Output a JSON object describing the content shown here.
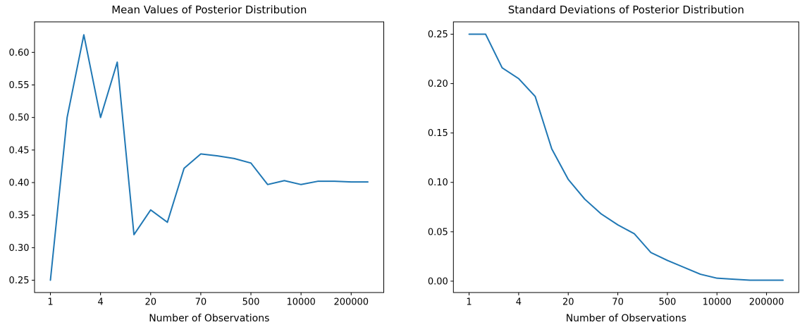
{
  "figure": {
    "background": "#ffffff",
    "text_color": "#000000",
    "spine_color": "#000000"
  },
  "chart_data": [
    {
      "type": "line",
      "title": "Mean Values of Posterior Distribution",
      "xlabel": "Number of Observations",
      "ylabel": "",
      "line_color": "#1f77b4",
      "grid": false,
      "legend": null,
      "x_tick_labels": [
        "1",
        "4",
        "20",
        "70",
        "500",
        "10000",
        "200000"
      ],
      "x_tick_indices": [
        0,
        3,
        6,
        9,
        12,
        15,
        18
      ],
      "x_index": [
        0,
        1,
        2,
        3,
        4,
        5,
        6,
        7,
        8,
        9,
        10,
        11,
        12,
        13,
        14,
        15,
        16,
        17,
        18,
        19
      ],
      "values": [
        0.25,
        0.5,
        0.627,
        0.5,
        0.585,
        0.32,
        0.358,
        0.339,
        0.422,
        0.444,
        0.441,
        0.437,
        0.43,
        0.397,
        0.403,
        0.397,
        0.402,
        0.402,
        0.401,
        0.401
      ],
      "y_tick_values": [
        0.25,
        0.3,
        0.35,
        0.4,
        0.45,
        0.5,
        0.55,
        0.6
      ],
      "y_tick_labels": [
        "0.25",
        "0.30",
        "0.35",
        "0.40",
        "0.45",
        "0.50",
        "0.55",
        "0.60"
      ],
      "ylim": [
        0.2311,
        0.6469
      ],
      "xlim": [
        -0.95,
        19.95
      ]
    },
    {
      "type": "line",
      "title": "Standard Deviations of Posterior Distribution",
      "xlabel": "Number of Observations",
      "ylabel": "",
      "line_color": "#1f77b4",
      "grid": false,
      "legend": null,
      "x_tick_labels": [
        "1",
        "4",
        "20",
        "70",
        "500",
        "10000",
        "200000"
      ],
      "x_tick_indices": [
        0,
        3,
        6,
        9,
        12,
        15,
        18
      ],
      "x_index": [
        0,
        1,
        2,
        3,
        4,
        5,
        6,
        7,
        8,
        9,
        10,
        11,
        12,
        13,
        14,
        15,
        16,
        17,
        18,
        19
      ],
      "values": [
        0.25,
        0.25,
        0.216,
        0.205,
        0.187,
        0.134,
        0.103,
        0.083,
        0.068,
        0.057,
        0.048,
        0.029,
        0.021,
        0.014,
        0.007,
        0.003,
        0.002,
        0.001,
        0.001,
        0.001
      ],
      "y_tick_values": [
        0.0,
        0.05,
        0.1,
        0.15,
        0.2,
        0.25
      ],
      "y_tick_labels": [
        "0.00",
        "0.05",
        "0.10",
        "0.15",
        "0.20",
        "0.25"
      ],
      "ylim": [
        -0.0115,
        0.2625
      ],
      "xlim": [
        -0.95,
        19.95
      ]
    }
  ]
}
